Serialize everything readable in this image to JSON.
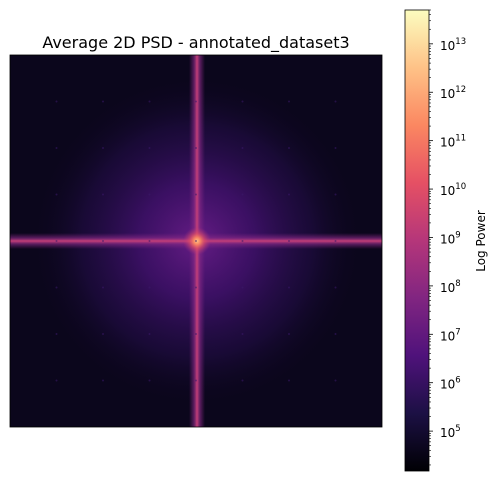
{
  "chart_data": {
    "type": "heatmap",
    "title": "Average 2D PSD - annotated_dataset3",
    "xlabel": "",
    "ylabel": "",
    "axes_ticks_visible": false,
    "colormap": "magma",
    "colorbar": {
      "label": "Log Power",
      "scale": "log",
      "range": [
        15000,
        50000000000000
      ],
      "ticks": [
        100000,
        1000000,
        10000000,
        100000000,
        1000000000,
        10000000000,
        100000000000,
        1000000000000,
        10000000000000
      ],
      "tick_labels": [
        {
          "base": "10",
          "exp": "5"
        },
        {
          "base": "10",
          "exp": "6"
        },
        {
          "base": "10",
          "exp": "7"
        },
        {
          "base": "10",
          "exp": "8"
        },
        {
          "base": "10",
          "exp": "9"
        },
        {
          "base": "10",
          "exp": "10"
        },
        {
          "base": "10",
          "exp": "11"
        },
        {
          "base": "10",
          "exp": "12"
        },
        {
          "base": "10",
          "exp": "13"
        }
      ]
    },
    "features": {
      "peak_power": 300000000000,
      "background_power": 30000,
      "axis_line_power": 10000000,
      "halo_power": 2000000
    }
  }
}
